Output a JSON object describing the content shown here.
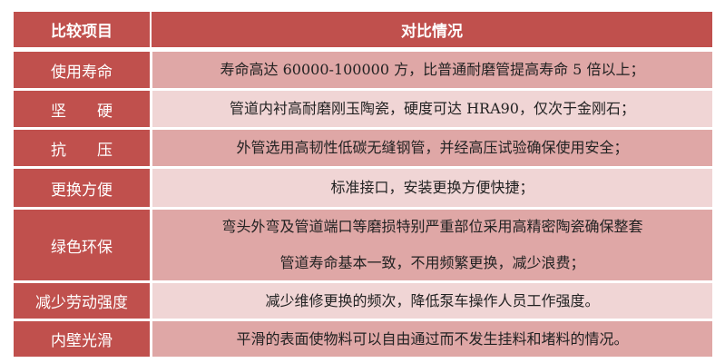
{
  "header": {
    "item": "比较项目",
    "description": "对比情况"
  },
  "rows": [
    {
      "item": "使用寿命",
      "lines": [
        "寿命高达 60000-100000 方，比普通耐磨管提高寿命 5 倍以上；"
      ]
    },
    {
      "item": "坚　　硬",
      "lines": [
        "管道内衬高耐磨刚玉陶瓷，硬度可达 HRA90，仅次于金刚石；"
      ]
    },
    {
      "item": "抗　　压",
      "lines": [
        "外管选用高韧性低碳无缝钢管，并经高压试验确保使用安全；"
      ]
    },
    {
      "item": "更换方便",
      "lines": [
        "标准接口，安装更换方便快捷；"
      ]
    },
    {
      "item": "绿色环保",
      "lines": [
        "弯头外弯及管道端口等磨损特别严重部位采用高精密陶瓷确保整套",
        "管道寿命基本一致，不用频繁更换，减少浪费；"
      ]
    },
    {
      "item": "减少劳动强度",
      "lines": [
        "减少维修更换的频次，降低泵车操作人员工作强度。"
      ]
    },
    {
      "item": "内壁光滑",
      "lines": [
        "平滑的表面使物料可以自由通过而不发生挂料和堵料的情况。"
      ]
    }
  ],
  "colors": {
    "header": "#c0504d",
    "row_dark": "#dfa7a6",
    "row_light": "#f0d5d5"
  }
}
